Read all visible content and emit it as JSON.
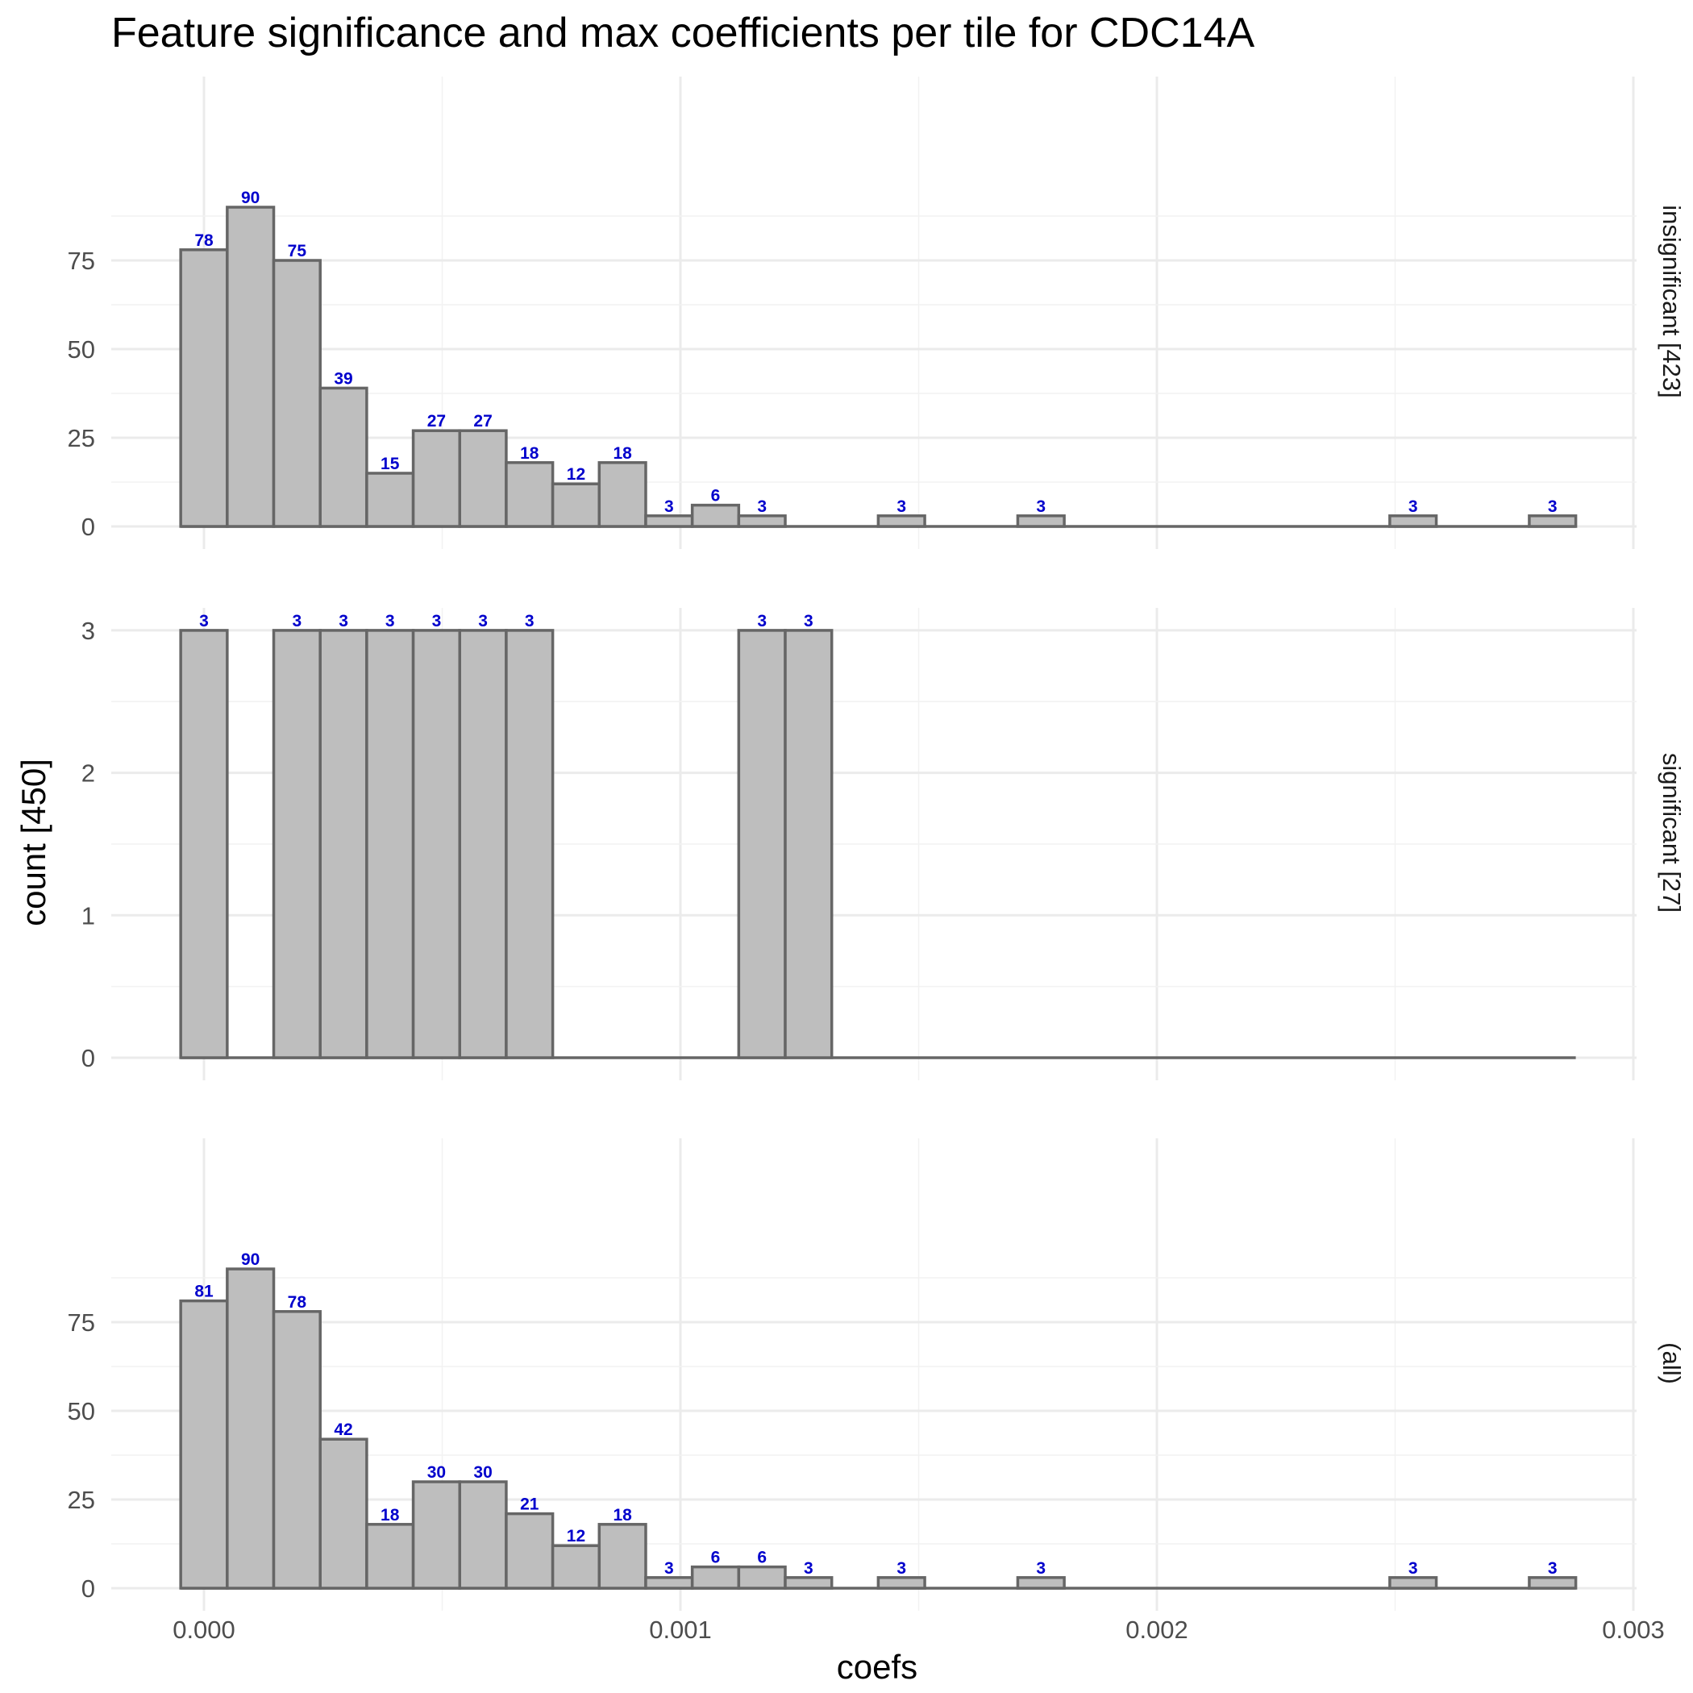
{
  "chart_data": {
    "type": "bar",
    "title": "Feature significance and max coefficients per tile for CDC14A",
    "xlabel": "coefs",
    "ylabel": "count [450]",
    "xlim": [
      -0.0002,
      0.003
    ],
    "x_ticks": [
      0.0,
      0.001,
      0.002,
      0.003
    ],
    "x_tick_labels": [
      "0.000",
      "0.001",
      "0.002",
      "0.003"
    ],
    "bin_width": 9.76e-05,
    "bin_start": -4.88e-05,
    "grid": true,
    "panels": [
      {
        "name": "insignificant [423]",
        "ylim": [
          0,
          95
        ],
        "y_ticks": [
          0,
          25,
          50,
          75
        ],
        "bins": [
          {
            "x": 0.0,
            "count": 78
          },
          {
            "x": 9.76e-05,
            "count": 90
          },
          {
            "x": 0.0001952,
            "count": 75
          },
          {
            "x": 0.0002928,
            "count": 39
          },
          {
            "x": 0.0003904,
            "count": 15
          },
          {
            "x": 0.000488,
            "count": 27
          },
          {
            "x": 0.0005856,
            "count": 27
          },
          {
            "x": 0.0006832,
            "count": 18
          },
          {
            "x": 0.0007808,
            "count": 12
          },
          {
            "x": 0.0008784,
            "count": 18
          },
          {
            "x": 0.000976,
            "count": 3
          },
          {
            "x": 0.0010736,
            "count": 6
          },
          {
            "x": 0.0011712,
            "count": 3
          },
          {
            "x": 0.001464,
            "count": 3
          },
          {
            "x": 0.0017568,
            "count": 3
          },
          {
            "x": 0.0025376,
            "count": 3
          },
          {
            "x": 0.0028304,
            "count": 3
          }
        ]
      },
      {
        "name": "significant [27]",
        "ylim": [
          0,
          3.15
        ],
        "y_ticks": [
          0,
          1,
          2,
          3
        ],
        "bins": [
          {
            "x": 0.0,
            "count": 3
          },
          {
            "x": 0.0001952,
            "count": 3
          },
          {
            "x": 0.0002928,
            "count": 3
          },
          {
            "x": 0.0003904,
            "count": 3
          },
          {
            "x": 0.000488,
            "count": 3
          },
          {
            "x": 0.0005856,
            "count": 3
          },
          {
            "x": 0.0006832,
            "count": 3
          },
          {
            "x": 0.0011712,
            "count": 3
          },
          {
            "x": 0.0012688,
            "count": 3
          }
        ]
      },
      {
        "name": "(all)",
        "ylim": [
          0,
          95
        ],
        "y_ticks": [
          0,
          25,
          50,
          75
        ],
        "bins": [
          {
            "x": 0.0,
            "count": 81
          },
          {
            "x": 9.76e-05,
            "count": 90
          },
          {
            "x": 0.0001952,
            "count": 78
          },
          {
            "x": 0.0002928,
            "count": 42
          },
          {
            "x": 0.0003904,
            "count": 18
          },
          {
            "x": 0.000488,
            "count": 30
          },
          {
            "x": 0.0005856,
            "count": 30
          },
          {
            "x": 0.0006832,
            "count": 21
          },
          {
            "x": 0.0007808,
            "count": 12
          },
          {
            "x": 0.0008784,
            "count": 18
          },
          {
            "x": 0.000976,
            "count": 3
          },
          {
            "x": 0.0010736,
            "count": 6
          },
          {
            "x": 0.0011712,
            "count": 6
          },
          {
            "x": 0.0012688,
            "count": 3
          },
          {
            "x": 0.001464,
            "count": 3
          },
          {
            "x": 0.0017568,
            "count": 3
          },
          {
            "x": 0.0025376,
            "count": 3
          },
          {
            "x": 0.0028304,
            "count": 3
          }
        ]
      }
    ],
    "colors": {
      "bar_fill": "#bebebe",
      "bar_stroke": "#666666",
      "label": "#0000cc"
    }
  }
}
